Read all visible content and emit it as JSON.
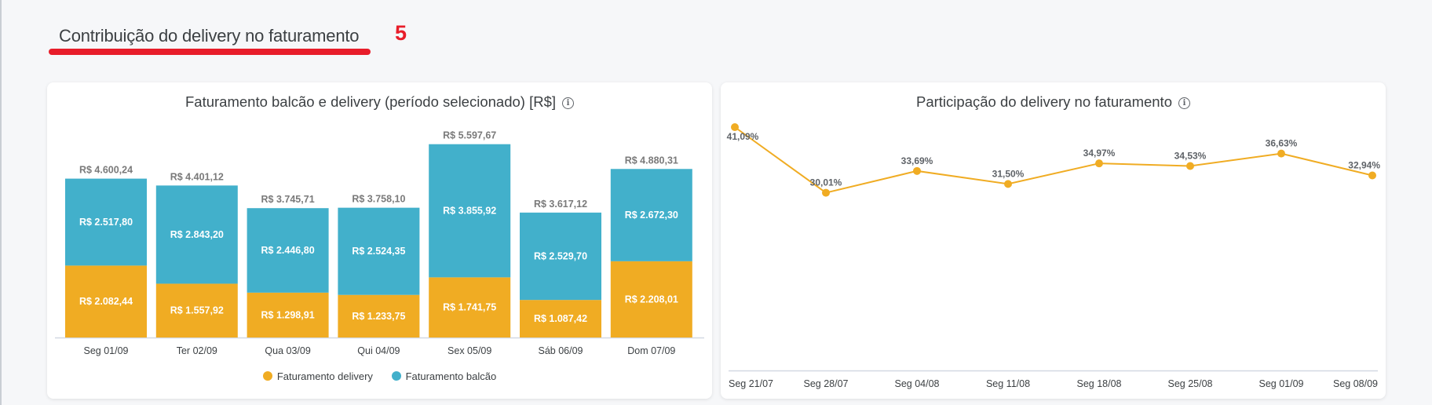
{
  "section": {
    "title": "Contribuição do delivery no faturamento",
    "marker": "5"
  },
  "colors": {
    "delivery": "#f0ac23",
    "balcao": "#42b0cb",
    "accent_red": "#e81d2a",
    "total_label": "#7a7a7a",
    "axis_line": "#d3d8e2"
  },
  "chart_data": [
    {
      "type": "bar",
      "stacked": true,
      "title": "Faturamento balcão e delivery (período selecionado) [R$]",
      "info_icon": "info-icon",
      "xlabel": "",
      "ylabel": "",
      "ylim": [
        0,
        6000
      ],
      "grid": false,
      "legend_position": "bottom-center",
      "categories": [
        "Seg 01/09",
        "Ter 02/09",
        "Qua 03/09",
        "Qui 04/09",
        "Sex 05/09",
        "Sáb 06/09",
        "Dom 07/09"
      ],
      "series": [
        {
          "name": "Faturamento delivery",
          "color": "#f0ac23",
          "values": [
            2082.44,
            1557.92,
            1298.91,
            1233.75,
            1741.75,
            1087.42,
            2208.01
          ],
          "labels": [
            "R$ 2.082,44",
            "R$ 1.557,92",
            "R$ 1.298,91",
            "R$ 1.233,75",
            "R$ 1.741,75",
            "R$ 1.087,42",
            "R$ 2.208,01"
          ]
        },
        {
          "name": "Faturamento balcão",
          "color": "#42b0cb",
          "values": [
            2517.8,
            2843.2,
            2446.8,
            2524.35,
            3855.92,
            2529.7,
            2672.3
          ],
          "labels": [
            "R$ 2.517,80",
            "R$ 2.843,20",
            "R$ 2.446,80",
            "R$ 2.524,35",
            "R$ 3.855,92",
            "R$ 2.529,70",
            "R$ 2.672,30"
          ]
        }
      ],
      "totals": [
        4600.24,
        4401.12,
        3745.71,
        3758.1,
        5597.67,
        3617.12,
        4880.31
      ],
      "total_labels": [
        "R$ 4.600,24",
        "R$ 4.401,12",
        "R$ 3.745,71",
        "R$ 3.758,10",
        "R$ 5.597,67",
        "R$ 3.617,12",
        "R$ 4.880,31"
      ]
    },
    {
      "type": "line",
      "title": "Participação do delivery no faturamento",
      "info_icon": "info-icon",
      "xlabel": "",
      "ylabel": "",
      "ylim": [
        0,
        41.09
      ],
      "grid": false,
      "legend_position": "none",
      "x": [
        "Seg 21/07",
        "Seg 28/07",
        "Seg 04/08",
        "Seg 11/08",
        "Seg 18/08",
        "Seg 25/08",
        "Seg 01/09",
        "Seg 08/09"
      ],
      "series": [
        {
          "name": "Participação do delivery",
          "color": "#f0ac23",
          "values": [
            41.09,
            30.01,
            33.69,
            31.5,
            34.97,
            34.53,
            36.63,
            32.94
          ],
          "labels": [
            "41,09%",
            "30,01%",
            "33,69%",
            "31,50%",
            "34,97%",
            "34,53%",
            "36,63%",
            "32,94%"
          ]
        }
      ]
    }
  ]
}
